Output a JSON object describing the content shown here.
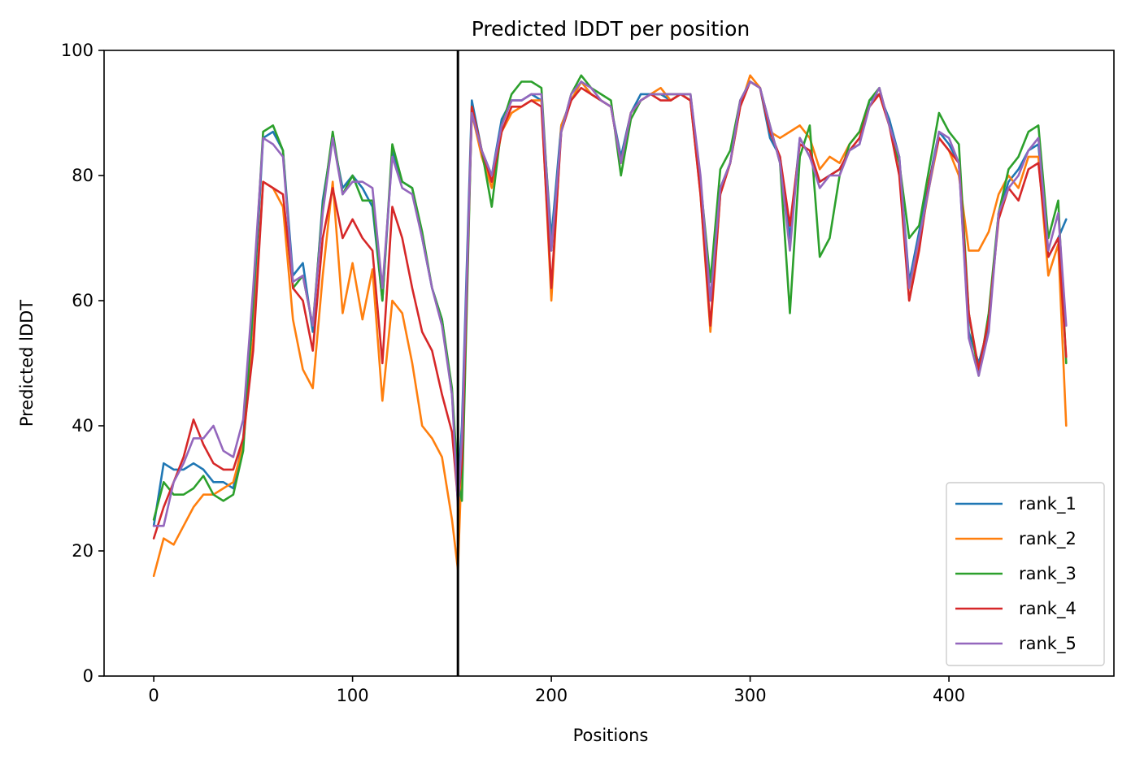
{
  "chart_data": {
    "type": "line",
    "title": "Predicted lDDT per position",
    "xlabel": "Positions",
    "ylabel": "Predicted lDDT",
    "xlim": [
      -25,
      483
    ],
    "ylim": [
      0,
      100
    ],
    "xticks": [
      0,
      100,
      200,
      300,
      400
    ],
    "yticks": [
      0,
      20,
      40,
      60,
      80,
      100
    ],
    "grid": false,
    "legend_position": "lower-right",
    "vline_x": 153,
    "vline_color": "#000000",
    "x": [
      0,
      5,
      10,
      15,
      20,
      25,
      30,
      35,
      40,
      45,
      50,
      55,
      60,
      65,
      70,
      75,
      80,
      85,
      90,
      95,
      100,
      105,
      110,
      115,
      120,
      125,
      130,
      135,
      140,
      145,
      150,
      153,
      155,
      160,
      165,
      170,
      175,
      180,
      185,
      190,
      195,
      200,
      205,
      210,
      215,
      220,
      225,
      230,
      235,
      240,
      245,
      250,
      255,
      260,
      265,
      270,
      275,
      280,
      285,
      290,
      295,
      300,
      305,
      310,
      315,
      320,
      325,
      330,
      335,
      340,
      345,
      350,
      355,
      360,
      365,
      370,
      375,
      380,
      385,
      390,
      395,
      400,
      405,
      410,
      415,
      420,
      425,
      430,
      435,
      440,
      445,
      450,
      455,
      459
    ],
    "series": [
      {
        "name": "rank_1",
        "color": "#1f77b4",
        "values": [
          24,
          34,
          33,
          33,
          34,
          33,
          31,
          31,
          30,
          38,
          58,
          86,
          87,
          84,
          64,
          66,
          55,
          76,
          86,
          78,
          80,
          78,
          75,
          60,
          84,
          79,
          78,
          70,
          62,
          57,
          45,
          30,
          40,
          92,
          84,
          80,
          89,
          92,
          92,
          93,
          92,
          70,
          88,
          92,
          95,
          93,
          92,
          91,
          83,
          90,
          93,
          93,
          93,
          92,
          93,
          92,
          79,
          60,
          78,
          82,
          92,
          95,
          94,
          86,
          83,
          70,
          86,
          83,
          79,
          80,
          81,
          84,
          85,
          92,
          93,
          89,
          83,
          63,
          71,
          79,
          87,
          85,
          82,
          55,
          50,
          56,
          74,
          79,
          81,
          84,
          85,
          67,
          70,
          73
        ]
      },
      {
        "name": "rank_2",
        "color": "#ff7f0e",
        "values": [
          16,
          22,
          21,
          24,
          27,
          29,
          29,
          30,
          31,
          37,
          54,
          79,
          78,
          75,
          57,
          49,
          46,
          64,
          79,
          58,
          66,
          57,
          65,
          44,
          60,
          58,
          50,
          40,
          38,
          35,
          25,
          17,
          35,
          90,
          83,
          78,
          87,
          90,
          91,
          92,
          92,
          60,
          88,
          92,
          95,
          93,
          92,
          91,
          82,
          90,
          92,
          93,
          94,
          92,
          93,
          92,
          77,
          55,
          77,
          82,
          91,
          96,
          94,
          87,
          86,
          87,
          88,
          86,
          81,
          83,
          82,
          85,
          87,
          91,
          93,
          88,
          82,
          60,
          69,
          78,
          86,
          84,
          80,
          68,
          68,
          71,
          77,
          80,
          78,
          83,
          83,
          64,
          69,
          40
        ]
      },
      {
        "name": "rank_3",
        "color": "#2ca02c",
        "values": [
          25,
          31,
          29,
          29,
          30,
          32,
          29,
          28,
          29,
          36,
          60,
          87,
          88,
          84,
          62,
          64,
          56,
          75,
          87,
          77,
          80,
          76,
          76,
          60,
          85,
          79,
          78,
          71,
          62,
          57,
          46,
          31,
          28,
          91,
          84,
          75,
          88,
          93,
          95,
          95,
          94,
          68,
          87,
          93,
          96,
          94,
          93,
          92,
          80,
          89,
          92,
          93,
          93,
          93,
          93,
          93,
          79,
          63,
          81,
          84,
          92,
          95,
          94,
          88,
          82,
          58,
          83,
          88,
          67,
          70,
          80,
          85,
          87,
          92,
          94,
          88,
          82,
          70,
          72,
          81,
          90,
          87,
          85,
          58,
          48,
          58,
          74,
          81,
          83,
          87,
          88,
          70,
          76,
          50
        ]
      },
      {
        "name": "rank_4",
        "color": "#d62728",
        "values": [
          22,
          27,
          31,
          35,
          41,
          37,
          34,
          33,
          33,
          38,
          52,
          79,
          78,
          77,
          62,
          60,
          52,
          70,
          78,
          70,
          73,
          70,
          68,
          50,
          75,
          70,
          62,
          55,
          52,
          45,
          39,
          28,
          34,
          91,
          84,
          79,
          87,
          91,
          91,
          92,
          91,
          62,
          87,
          92,
          94,
          93,
          92,
          91,
          82,
          90,
          92,
          93,
          92,
          92,
          93,
          92,
          77,
          56,
          77,
          82,
          91,
          95,
          94,
          87,
          83,
          72,
          85,
          84,
          79,
          80,
          81,
          84,
          86,
          91,
          93,
          88,
          80,
          60,
          68,
          79,
          86,
          84,
          82,
          58,
          49,
          57,
          73,
          78,
          76,
          81,
          82,
          67,
          70,
          51
        ]
      },
      {
        "name": "rank_5",
        "color": "#9467bd",
        "values": [
          24,
          24,
          31,
          34,
          38,
          38,
          40,
          36,
          35,
          41,
          62,
          86,
          85,
          83,
          63,
          64,
          56,
          74,
          86,
          77,
          79,
          79,
          78,
          62,
          83,
          78,
          77,
          70,
          62,
          56,
          45,
          27,
          38,
          90,
          84,
          80,
          88,
          92,
          92,
          93,
          93,
          68,
          87,
          93,
          95,
          94,
          92,
          91,
          82,
          90,
          92,
          93,
          93,
          93,
          93,
          93,
          80,
          60,
          78,
          82,
          92,
          95,
          94,
          88,
          82,
          68,
          86,
          83,
          78,
          80,
          80,
          84,
          85,
          91,
          94,
          88,
          83,
          62,
          70,
          78,
          87,
          86,
          82,
          54,
          48,
          55,
          74,
          78,
          80,
          84,
          86,
          68,
          74,
          56
        ]
      }
    ]
  }
}
